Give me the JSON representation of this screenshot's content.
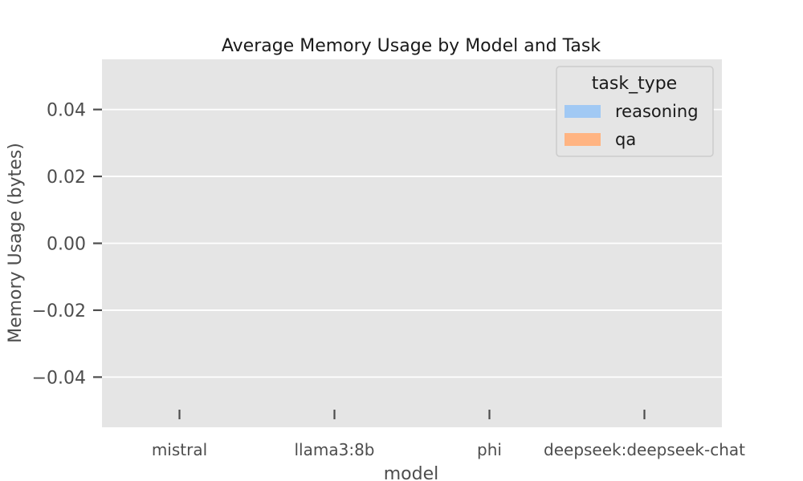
{
  "chart_data": {
    "type": "bar",
    "title": "Average Memory Usage by Model and Task",
    "xlabel": "model",
    "ylabel": "Memory Usage (bytes)",
    "categories": [
      "mistral",
      "llama3:8b",
      "phi",
      "deepseek:deepseek-chat"
    ],
    "series": [
      {
        "name": "reasoning",
        "values": [
          null,
          null,
          null,
          null
        ],
        "color": "#a1c9f4"
      },
      {
        "name": "qa",
        "values": [
          null,
          null,
          null,
          null
        ],
        "color": "#ffb482"
      }
    ],
    "yticks": [
      0.04,
      0.02,
      0.0,
      -0.02,
      -0.04
    ],
    "ytick_labels": [
      "0.04",
      "0.02",
      "0.00",
      "−0.02",
      "−0.04"
    ],
    "ylim": [
      -0.055,
      0.055
    ],
    "grid": true,
    "legend": {
      "title": "task_type",
      "placement": "top-right"
    },
    "colors": {
      "plot_background": "#e5e5e5",
      "grid": "#ffffff",
      "tick": "#4d4d4d"
    }
  }
}
